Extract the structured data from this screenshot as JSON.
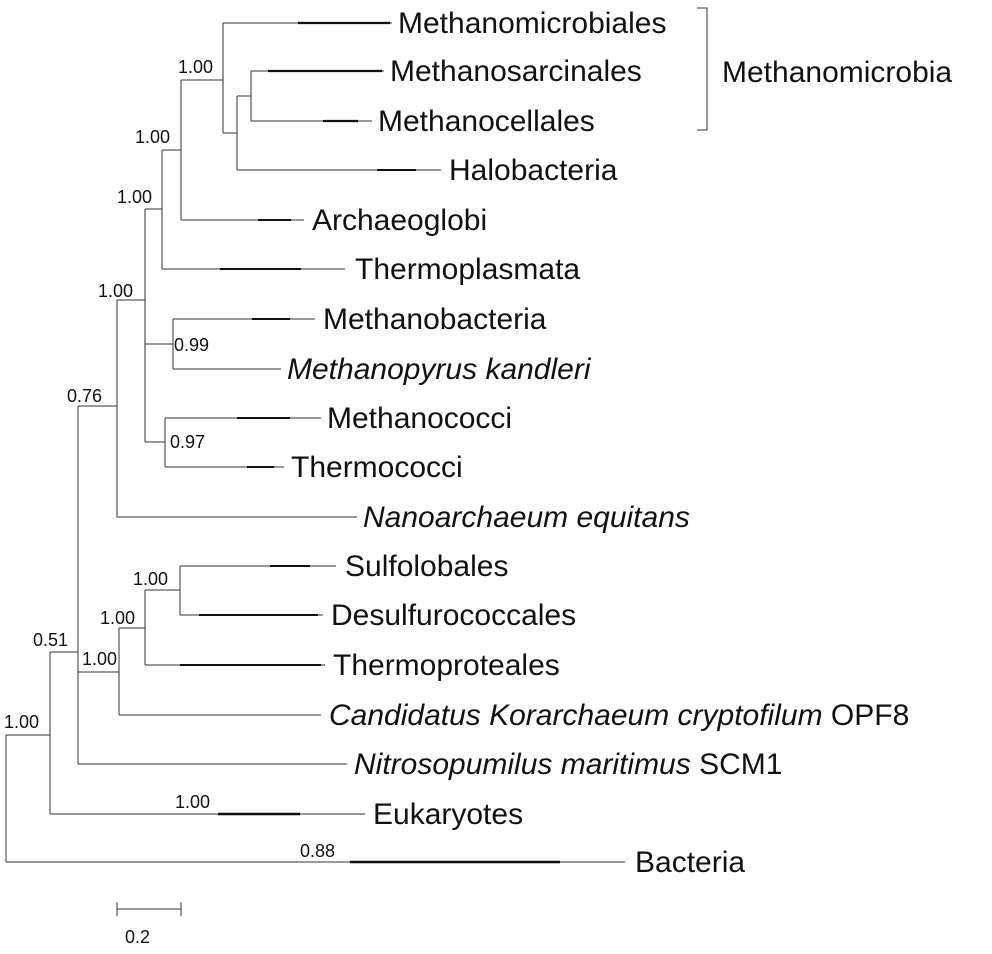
{
  "leaves": [
    {
      "id": "methanomicrobiales",
      "parts": [
        {
          "text": "Methanomicrobiales",
          "italic": false
        }
      ]
    },
    {
      "id": "methanosarcinales",
      "parts": [
        {
          "text": "Methanosarcinales",
          "italic": false
        }
      ]
    },
    {
      "id": "methanocellales",
      "parts": [
        {
          "text": "Methanocellales",
          "italic": false
        }
      ]
    },
    {
      "id": "halobacteria",
      "parts": [
        {
          "text": "Halobacteria",
          "italic": false
        }
      ]
    },
    {
      "id": "archaeoglobi",
      "parts": [
        {
          "text": "Archaeoglobi",
          "italic": false
        }
      ]
    },
    {
      "id": "thermoplasmata",
      "parts": [
        {
          "text": "Thermoplasmata",
          "italic": false
        }
      ]
    },
    {
      "id": "methanobacteria",
      "parts": [
        {
          "text": "Methanobacteria",
          "italic": false
        }
      ]
    },
    {
      "id": "methanopyrus",
      "parts": [
        {
          "text": "Methanopyrus kandleri",
          "italic": true
        }
      ]
    },
    {
      "id": "methanococci",
      "parts": [
        {
          "text": "Methanococci",
          "italic": false
        }
      ]
    },
    {
      "id": "thermococci",
      "parts": [
        {
          "text": "Thermococci",
          "italic": false
        }
      ]
    },
    {
      "id": "nanoarchaeum",
      "parts": [
        {
          "text": "Nanoarchaeum equitans",
          "italic": true
        }
      ]
    },
    {
      "id": "sulfolobales",
      "parts": [
        {
          "text": "Sulfolobales",
          "italic": false
        }
      ]
    },
    {
      "id": "desulfurococcales",
      "parts": [
        {
          "text": "Desulfurococcales",
          "italic": false
        }
      ]
    },
    {
      "id": "thermoproteales",
      "parts": [
        {
          "text": "Thermoproteales",
          "italic": false
        }
      ]
    },
    {
      "id": "korarchaeum",
      "parts": [
        {
          "text": "Candidatus Korarchaeum cryptofilum",
          "italic": true
        },
        {
          "text": " OPF8",
          "italic": false
        }
      ]
    },
    {
      "id": "nitrosopumilus",
      "parts": [
        {
          "text": "Nitrosopumilus maritimus",
          "italic": true
        },
        {
          "text": " SCM1",
          "italic": false
        }
      ]
    },
    {
      "id": "eukaryotes",
      "parts": [
        {
          "text": "Eukaryotes",
          "italic": false
        }
      ]
    },
    {
      "id": "bacteria",
      "parts": [
        {
          "text": "Bacteria",
          "italic": false
        }
      ]
    }
  ],
  "support_values": {
    "methanosarcinales_methanocellales": "",
    "methanomicrobia_halobacteria": "",
    "methanomicrobia": "1.00",
    "plus_archaeoglobi": "1.00",
    "plus_thermoplasmata": "1.00",
    "methanobacteria_methanopyrus": "0.99",
    "methanococci_thermococci": "0.97",
    "euryarchaeota_core": "1.00",
    "euryarchaeota": "0.76",
    "sulfolobales_desulfurococcales": "1.00",
    "crenarchaeota": "1.00",
    "plus_korarchaeum": "1.00",
    "archaea": "0.51",
    "archaea_eukaryotes": "1.00",
    "eukaryotes_branch": "1.00",
    "bacteria_branch": "0.88"
  },
  "clade_label": "Methanomicrobia",
  "scale_bar": {
    "value": 0.2,
    "label": "0.2"
  }
}
